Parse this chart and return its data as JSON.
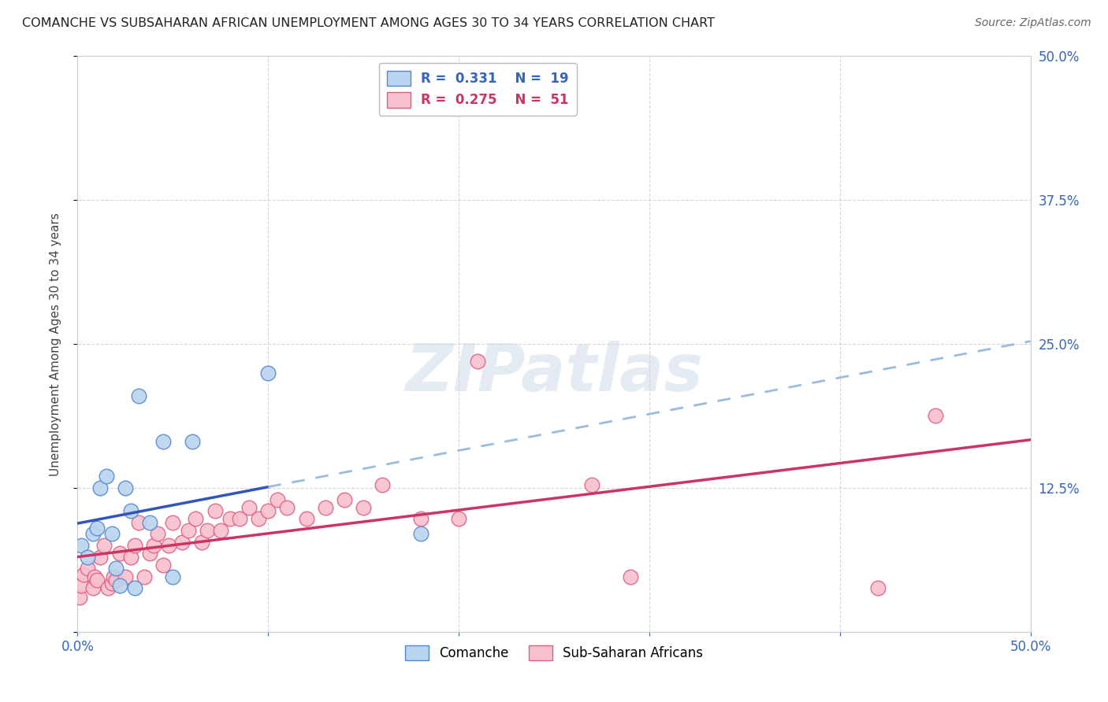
{
  "title": "COMANCHE VS SUBSAHARAN AFRICAN UNEMPLOYMENT AMONG AGES 30 TO 34 YEARS CORRELATION CHART",
  "source": "Source: ZipAtlas.com",
  "ylabel": "Unemployment Among Ages 30 to 34 years",
  "xlim": [
    0.0,
    0.5
  ],
  "ylim": [
    0.0,
    0.5
  ],
  "xticks": [
    0.0,
    0.1,
    0.2,
    0.3,
    0.4,
    0.5
  ],
  "yticks": [
    0.0,
    0.125,
    0.25,
    0.375,
    0.5
  ],
  "xticklabels_left": "0.0%",
  "xticklabels_right": "50.0%",
  "yticklabels": [
    "",
    "12.5%",
    "25.0%",
    "37.5%",
    "50.0%"
  ],
  "grid_color": "#cccccc",
  "background_color": "#ffffff",
  "comanche_color": "#b8d4ee",
  "comanche_edge_color": "#5588cc",
  "subsaharan_color": "#f7c0ce",
  "subsaharan_edge_color": "#e06080",
  "comanche_R": 0.331,
  "comanche_N": 19,
  "subsaharan_R": 0.275,
  "subsaharan_N": 51,
  "comanche_line_color": "#3355bb",
  "subsaharan_line_color": "#cc3366",
  "comanche_dash_color": "#99bbdd",
  "comanche_x": [
    0.002,
    0.005,
    0.008,
    0.01,
    0.012,
    0.015,
    0.018,
    0.02,
    0.022,
    0.025,
    0.028,
    0.03,
    0.032,
    0.038,
    0.045,
    0.05,
    0.06,
    0.1,
    0.18
  ],
  "comanche_y": [
    0.075,
    0.065,
    0.085,
    0.09,
    0.125,
    0.135,
    0.085,
    0.055,
    0.04,
    0.125,
    0.105,
    0.038,
    0.205,
    0.095,
    0.165,
    0.048,
    0.165,
    0.225,
    0.085
  ],
  "subsaharan_x": [
    0.001,
    0.002,
    0.003,
    0.005,
    0.008,
    0.009,
    0.01,
    0.012,
    0.014,
    0.016,
    0.018,
    0.019,
    0.02,
    0.022,
    0.025,
    0.028,
    0.03,
    0.032,
    0.035,
    0.038,
    0.04,
    0.042,
    0.045,
    0.048,
    0.05,
    0.055,
    0.058,
    0.062,
    0.065,
    0.068,
    0.072,
    0.075,
    0.08,
    0.085,
    0.09,
    0.095,
    0.1,
    0.105,
    0.11,
    0.12,
    0.13,
    0.14,
    0.15,
    0.16,
    0.18,
    0.2,
    0.21,
    0.27,
    0.29,
    0.42,
    0.45
  ],
  "subsaharan_y": [
    0.03,
    0.04,
    0.05,
    0.055,
    0.038,
    0.048,
    0.045,
    0.065,
    0.075,
    0.038,
    0.042,
    0.048,
    0.045,
    0.068,
    0.048,
    0.065,
    0.075,
    0.095,
    0.048,
    0.068,
    0.075,
    0.085,
    0.058,
    0.075,
    0.095,
    0.078,
    0.088,
    0.098,
    0.078,
    0.088,
    0.105,
    0.088,
    0.098,
    0.098,
    0.108,
    0.098,
    0.105,
    0.115,
    0.108,
    0.098,
    0.108,
    0.115,
    0.108,
    0.128,
    0.098,
    0.098,
    0.235,
    0.128,
    0.048,
    0.038,
    0.188
  ]
}
